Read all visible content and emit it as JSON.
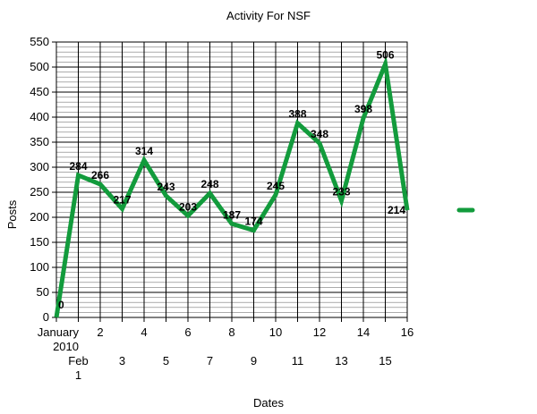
{
  "chart_data": {
    "type": "line",
    "title": "Activity For NSF",
    "xlabel": "Dates",
    "ylabel": "Posts",
    "ylim": [
      0,
      550
    ],
    "y_ticks": [
      0,
      50,
      100,
      150,
      200,
      250,
      300,
      350,
      400,
      450,
      500,
      550
    ],
    "y_minor_step": 10,
    "grid": true,
    "legend": "right",
    "x_tick_labels": [
      "January\n2010",
      "Feb\n1",
      "2",
      "3",
      "4",
      "5",
      "6",
      "7",
      "8",
      "9",
      "10",
      "11",
      "12",
      "13",
      "14",
      "15",
      "16"
    ],
    "series": [
      {
        "color": "#129b3c",
        "values": [
          0,
          284,
          266,
          217,
          314,
          243,
          203,
          248,
          187,
          174,
          245,
          388,
          348,
          233,
          398,
          506,
          214
        ],
        "labels": [
          "0",
          "284",
          "266",
          "217",
          "314",
          "243",
          "203",
          "248",
          "187",
          "174",
          "245",
          "388",
          "348",
          "233",
          "398",
          "506",
          "214"
        ]
      }
    ]
  }
}
